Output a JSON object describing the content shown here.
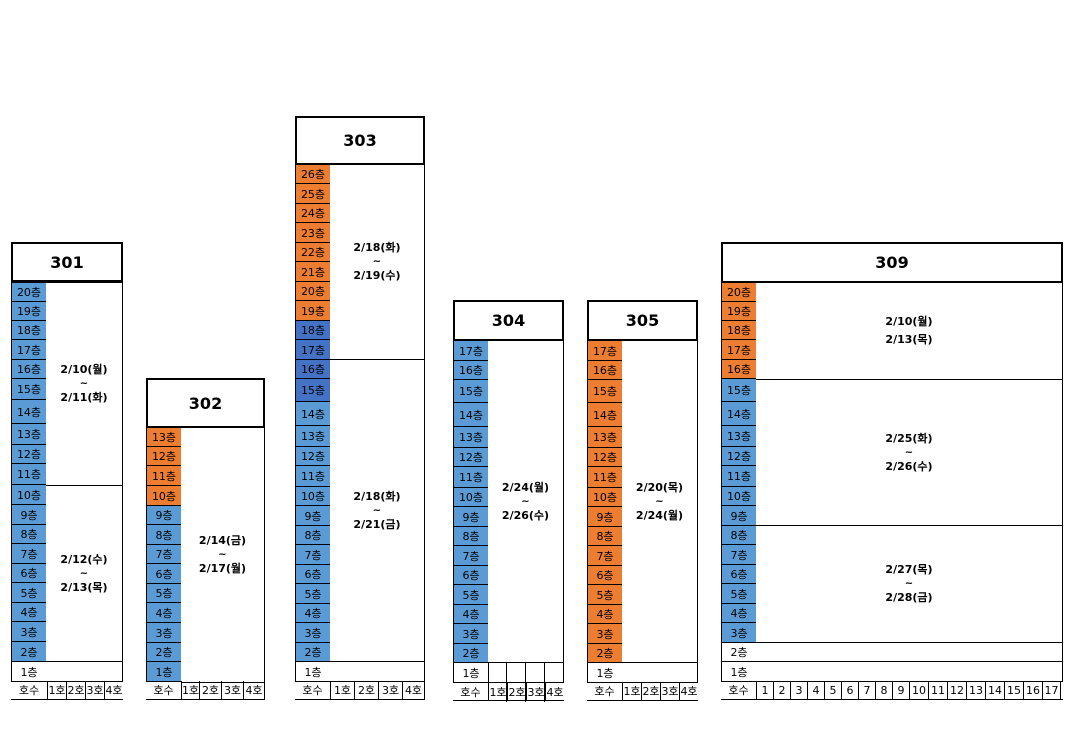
{
  "floor_suffix": "층",
  "unit_header": "호수",
  "buildings": [
    {
      "name": "301",
      "floors_top_to_bottom": [
        "20층",
        "19층",
        "18층",
        "17층",
        "16층",
        "15층",
        "14층",
        "13층",
        "12층",
        "11층",
        "10층",
        "9층",
        "8층",
        "7층",
        "6층",
        "5층",
        "4층",
        "3층",
        "2층",
        "1층"
      ],
      "floor_colors": [
        "blue",
        "blue",
        "blue",
        "blue",
        "blue",
        "blue",
        "blue",
        "blue",
        "blue",
        "blue",
        "blue",
        "blue",
        "blue",
        "blue",
        "blue",
        "blue",
        "blue",
        "blue",
        "blue",
        "white"
      ],
      "schedules": [
        {
          "floors": "11-20",
          "start": "2/10(월)",
          "sep": "~",
          "end": "2/11(화)"
        },
        {
          "floors": "2-10",
          "start": "2/12(수)",
          "sep": "~",
          "end": "2/13(목)"
        }
      ],
      "units": [
        "1호",
        "2호",
        "3호",
        "4호"
      ]
    },
    {
      "name": "302",
      "floors_top_to_bottom": [
        "13층",
        "12층",
        "11층",
        "10층",
        "9층",
        "8층",
        "7층",
        "6층",
        "5층",
        "4층",
        "3층",
        "2층",
        "1층"
      ],
      "floor_colors": [
        "orange",
        "orange",
        "orange",
        "orange",
        "blue",
        "blue",
        "blue",
        "blue",
        "blue",
        "blue",
        "blue",
        "blue",
        "blue"
      ],
      "schedules": [
        {
          "floors": "1-13",
          "start": "2/14(금)",
          "sep": "~",
          "end": "2/17(월)"
        }
      ],
      "units": [
        "1호",
        "2호",
        "3호",
        "4호"
      ]
    },
    {
      "name": "303",
      "floors_top_to_bottom": [
        "26층",
        "25층",
        "24층",
        "23층",
        "22층",
        "21층",
        "20층",
        "19층",
        "18층",
        "17층",
        "16층",
        "15층",
        "14층",
        "13층",
        "12층",
        "11층",
        "10층",
        "9층",
        "8층",
        "7층",
        "6층",
        "5층",
        "4층",
        "3층",
        "2층",
        "1층"
      ],
      "floor_colors": [
        "orange",
        "orange",
        "orange",
        "orange",
        "orange",
        "orange",
        "orange",
        "orange",
        "dblue",
        "dblue",
        "dblue",
        "dblue",
        "blue",
        "blue",
        "blue",
        "blue",
        "blue",
        "blue",
        "blue",
        "blue",
        "blue",
        "blue",
        "blue",
        "blue",
        "blue",
        "white"
      ],
      "schedules": [
        {
          "floors": "19-26",
          "start": "2/18(화)",
          "sep": "~",
          "end": "2/19(수)"
        },
        {
          "floors": "2-18",
          "start": "2/18(화)",
          "sep": "~",
          "end": "2/21(금)"
        }
      ],
      "units": [
        "1호",
        "2호",
        "3호",
        "4호"
      ]
    },
    {
      "name": "304",
      "floors_top_to_bottom": [
        "17층",
        "16층",
        "15층",
        "14층",
        "13층",
        "12층",
        "11층",
        "10층",
        "9층",
        "8층",
        "7층",
        "6층",
        "5층",
        "4층",
        "3층",
        "2층",
        "1층"
      ],
      "floor_colors": [
        "blue",
        "blue",
        "blue",
        "blue",
        "blue",
        "blue",
        "blue",
        "blue",
        "blue",
        "blue",
        "blue",
        "blue",
        "blue",
        "blue",
        "blue",
        "blue",
        "white"
      ],
      "schedules": [
        {
          "floors": "2-17",
          "start": "2/24(월)",
          "sep": "~",
          "end": "2/26(수)"
        }
      ],
      "units": [
        "1호",
        "2호",
        "3호",
        "4호"
      ]
    },
    {
      "name": "305",
      "floors_top_to_bottom": [
        "17층",
        "16층",
        "15층",
        "14층",
        "13층",
        "12층",
        "11층",
        "10층",
        "9층",
        "8층",
        "7층",
        "6층",
        "5층",
        "4층",
        "3층",
        "2층",
        "1층"
      ],
      "floor_colors": [
        "orange",
        "orange",
        "orange",
        "orange",
        "orange",
        "orange",
        "orange",
        "orange",
        "orange",
        "orange",
        "orange",
        "orange",
        "orange",
        "orange",
        "orange",
        "orange",
        "white"
      ],
      "schedules": [
        {
          "floors": "2-17",
          "start": "2/20(목)",
          "sep": "~",
          "end": "2/24(월)"
        }
      ],
      "units": [
        "1호",
        "2호",
        "3호",
        "4호"
      ]
    },
    {
      "name": "309",
      "floors_top_to_bottom": [
        "20층",
        "19층",
        "18층",
        "17층",
        "16층",
        "15층",
        "14층",
        "13층",
        "12층",
        "11층",
        "10층",
        "9층",
        "8층",
        "7층",
        "6층",
        "5층",
        "4층",
        "3층",
        "2층",
        "1층"
      ],
      "floor_colors": [
        "orange",
        "orange",
        "orange",
        "orange",
        "orange",
        "blue",
        "blue",
        "blue",
        "blue",
        "blue",
        "blue",
        "blue",
        "blue",
        "blue",
        "blue",
        "blue",
        "blue",
        "blue",
        "white",
        "white"
      ],
      "schedules": [
        {
          "floors": "16-20",
          "start": "2/10(월)",
          "sep": "",
          "end": "2/13(목)"
        },
        {
          "floors": "9-15",
          "start": "2/25(화)",
          "sep": "~",
          "end": "2/26(수)"
        },
        {
          "floors": "3-8",
          "start": "2/27(목)",
          "sep": "~",
          "end": "2/28(금)"
        }
      ],
      "units": [
        "1",
        "2",
        "3",
        "4",
        "5",
        "6",
        "7",
        "8",
        "9",
        "10",
        "11",
        "12",
        "13",
        "14",
        "15",
        "16",
        "17"
      ]
    }
  ]
}
